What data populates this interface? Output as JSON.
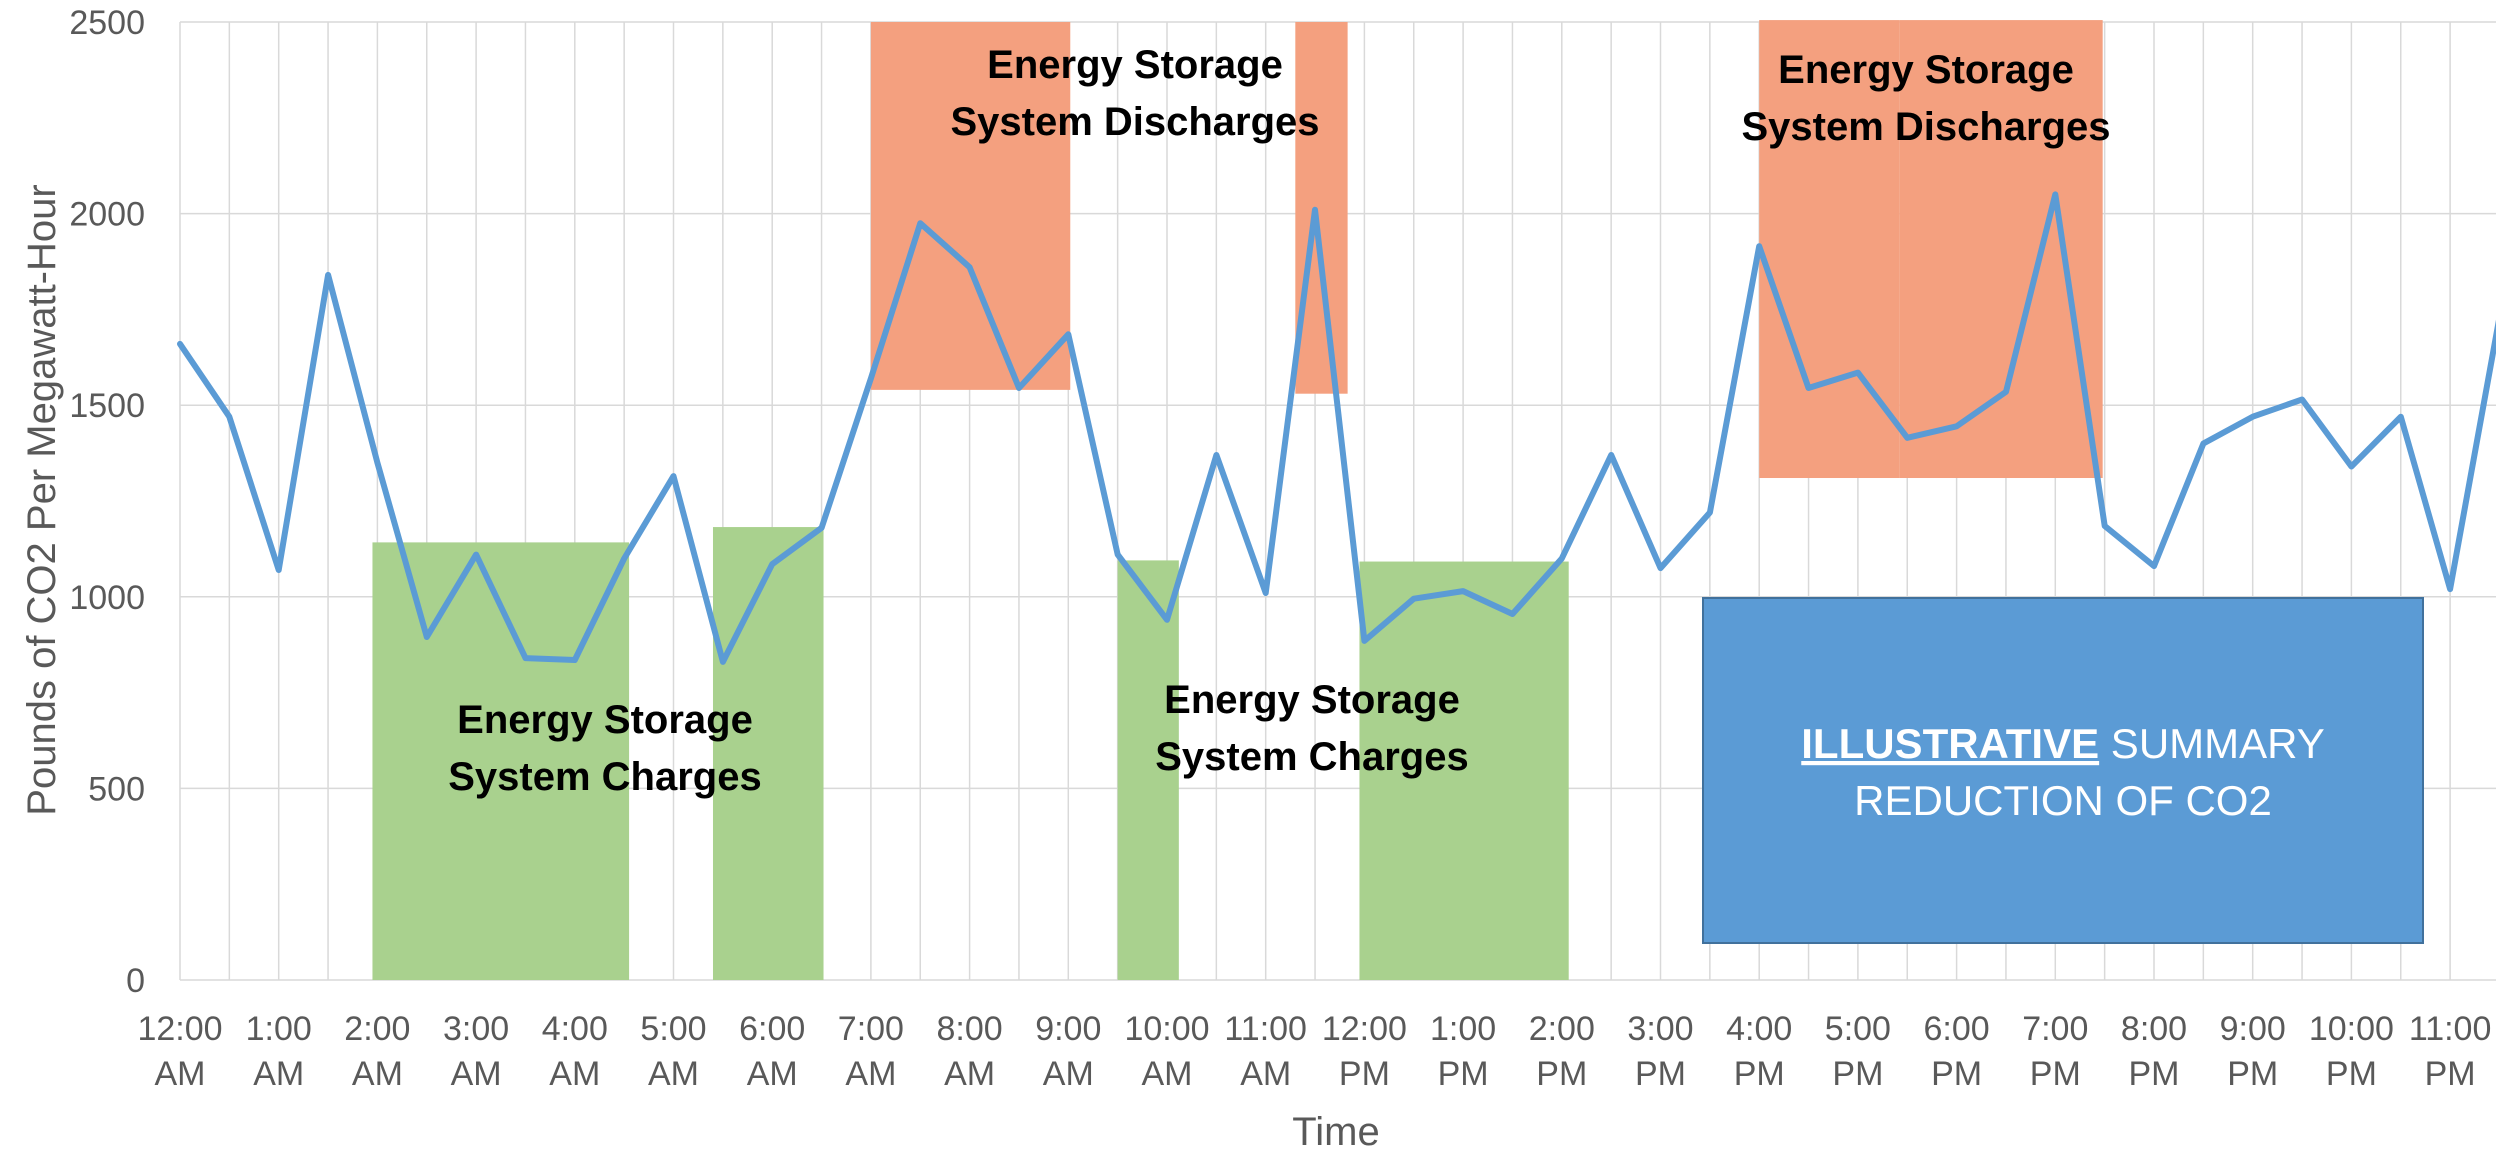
{
  "chart_data": {
    "type": "line",
    "title": "",
    "xlabel": "Time",
    "ylabel": "Pounds of CO2 Per Megawatt-Hour",
    "ylim": [
      0,
      2500
    ],
    "yticks": [
      0,
      500,
      1000,
      1500,
      2000,
      2500
    ],
    "x_tick_labels": [
      [
        "12:00",
        "AM"
      ],
      [
        "1:00",
        "AM"
      ],
      [
        "2:00",
        "AM"
      ],
      [
        "3:00",
        "AM"
      ],
      [
        "4:00",
        "AM"
      ],
      [
        "5:00",
        "AM"
      ],
      [
        "6:00",
        "AM"
      ],
      [
        "7:00",
        "AM"
      ],
      [
        "8:00",
        "AM"
      ],
      [
        "9:00",
        "AM"
      ],
      [
        "10:00",
        "AM"
      ],
      [
        "11:00",
        "AM"
      ],
      [
        "12:00",
        "PM"
      ],
      [
        "1:00",
        "PM"
      ],
      [
        "2:00",
        "PM"
      ],
      [
        "3:00",
        "PM"
      ],
      [
        "4:00",
        "PM"
      ],
      [
        "5:00",
        "PM"
      ],
      [
        "6:00",
        "PM"
      ],
      [
        "7:00",
        "PM"
      ],
      [
        "8:00",
        "PM"
      ],
      [
        "9:00",
        "PM"
      ],
      [
        "10:00",
        "PM"
      ],
      [
        "11:00",
        "PM"
      ]
    ],
    "grid": true,
    "series": [
      {
        "color": "#5B9BD5",
        "x_hours": [
          0,
          0.5,
          1,
          1.5,
          2,
          2.5,
          3,
          3.5,
          4,
          4.5,
          5,
          5.5,
          6,
          6.5,
          7,
          7.5,
          8,
          8.5,
          9,
          9.5,
          10,
          10.5,
          11,
          11.5,
          12,
          12.5,
          13,
          13.5,
          14,
          14.5,
          15,
          15.5,
          16,
          16.5,
          17,
          17.5,
          18,
          18.5,
          19,
          19.5,
          20,
          20.5,
          21,
          21.5,
          22,
          22.5,
          23,
          23.5
        ],
        "values": [
          1660,
          1470,
          1070,
          1840,
          1350,
          895,
          1110,
          840,
          835,
          1100,
          1315,
          830,
          1085,
          1180,
          1570,
          1975,
          1860,
          1545,
          1685,
          1110,
          940,
          1370,
          1010,
          2010,
          885,
          995,
          1015,
          955,
          1100,
          1370,
          1075,
          1220,
          1915,
          1545,
          1585,
          1415,
          1445,
          1535,
          2050,
          1185,
          1080,
          1400,
          1470,
          1515,
          1340,
          1470,
          1020,
          1730
        ]
      }
    ],
    "charge_color": "#A9D18E",
    "discharge_color": "#F4A07F",
    "charge_bands": [
      {
        "x0": 1.95,
        "x1": 4.55,
        "y0": 0,
        "y1": 1142
      },
      {
        "x0": 5.4,
        "x1": 6.52,
        "y0": 0,
        "y1": 1182
      },
      {
        "x0": 9.5,
        "x1": 10.12,
        "y0": 0,
        "y1": 1095
      },
      {
        "x0": 11.95,
        "x1": 14.07,
        "y0": 0,
        "y1": 1092
      }
    ],
    "discharge_bands": [
      {
        "x0": 7.0,
        "x1": 9.02,
        "y0": 1540,
        "y1": 2500
      },
      {
        "x0": 11.3,
        "x1": 11.83,
        "y0": 1530,
        "y1": 2500
      },
      {
        "x0": 16.0,
        "x1": 17.42,
        "y0": 1310,
        "y1": 2505
      },
      {
        "x0": 17.42,
        "x1": 19.48,
        "y0": 1310,
        "y1": 2505
      }
    ],
    "annotations": {
      "charges_1": [
        "Energy Storage",
        "System Charges"
      ],
      "charges_2": [
        "Energy Storage",
        "System Charges"
      ],
      "discharges_1": [
        "Energy Storage",
        "System Discharges"
      ],
      "discharges_2": [
        "Energy Storage",
        "System Discharges"
      ]
    },
    "summary_box": {
      "color": "#5B9BD5",
      "line1_underlined": "ILLUSTRATIVE",
      "line1_rest": " SUMMARY",
      "line2": "REDUCTION OF CO2"
    }
  }
}
